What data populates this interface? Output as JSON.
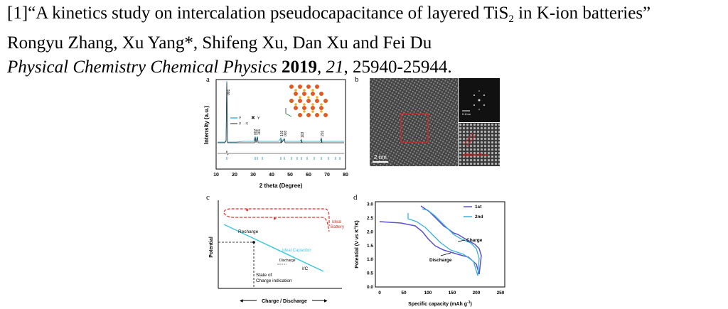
{
  "citation": {
    "line1_prefix": "[1]“A kinetics study on intercalation pseudocapacitance of layered TiS",
    "line1_sub": "2",
    "line1_suffix": " in K-ion batteries”",
    "authors": "Rongyu Zhang, Xu Yang*, Shifeng Xu, Dan Xu and Fei Du",
    "journal": "Physical Chemistry Chemical Physics",
    "year": "2019",
    "volume": "21",
    "pages": ", 25940-25944."
  },
  "panels": {
    "a": {
      "letter": "a",
      "ylabel": "Intensity (a.u.)",
      "xlabel": "2 theta (Degree)",
      "xticks": [
        "10",
        "20",
        "30",
        "40",
        "50",
        "60",
        "70",
        "80"
      ],
      "peaks": [
        "001",
        "002",
        "101",
        "102",
        "003",
        "103",
        "201"
      ],
      "legend": [
        "Y",
        "Y",
        "Y",
        "-Y"
      ],
      "legend_full": [
        "Y_cal",
        "Y_obs",
        "Y_obs-Y_cal"
      ]
    },
    "b": {
      "letter": "b",
      "scalebar": "2 nm",
      "inset_scale": "5 1/nm",
      "lattice_label": "d(001)=0.58 nm"
    },
    "c": {
      "letter": "c",
      "ylabel": "Potential",
      "xlabel": "Charge / Discharge",
      "labels": [
        "Recharge",
        "Ideal Capacitor",
        "I/C",
        "Discharge",
        "State of",
        "Charge indication",
        "Ideal",
        "Battery"
      ]
    },
    "d": {
      "letter": "d",
      "ylabel": "Potential (V vs K",
      "ylabel_full": "Potential (V vs K⁺/K)",
      "xlabel": "Specific capacity (mAh g",
      "xlabel_full": "Specific capacity (mAh g⁻¹)",
      "yticks": [
        "0.0",
        "0.5",
        "1.0",
        "1.5",
        "2.0",
        "2.5",
        "3.0"
      ],
      "xticks": [
        "0",
        "50",
        "100",
        "150",
        "200",
        "250"
      ],
      "legend": [
        "1st",
        "2nd"
      ],
      "annotations": [
        "Charge",
        "Discharge"
      ]
    }
  },
  "colors": {
    "ideal_battery": "#e0312b",
    "ideal_capacitor": "#3fc7e0",
    "cycle1": "#5a50c8",
    "cycle2": "#3ab0de",
    "marker_red": "#e23a2a"
  }
}
